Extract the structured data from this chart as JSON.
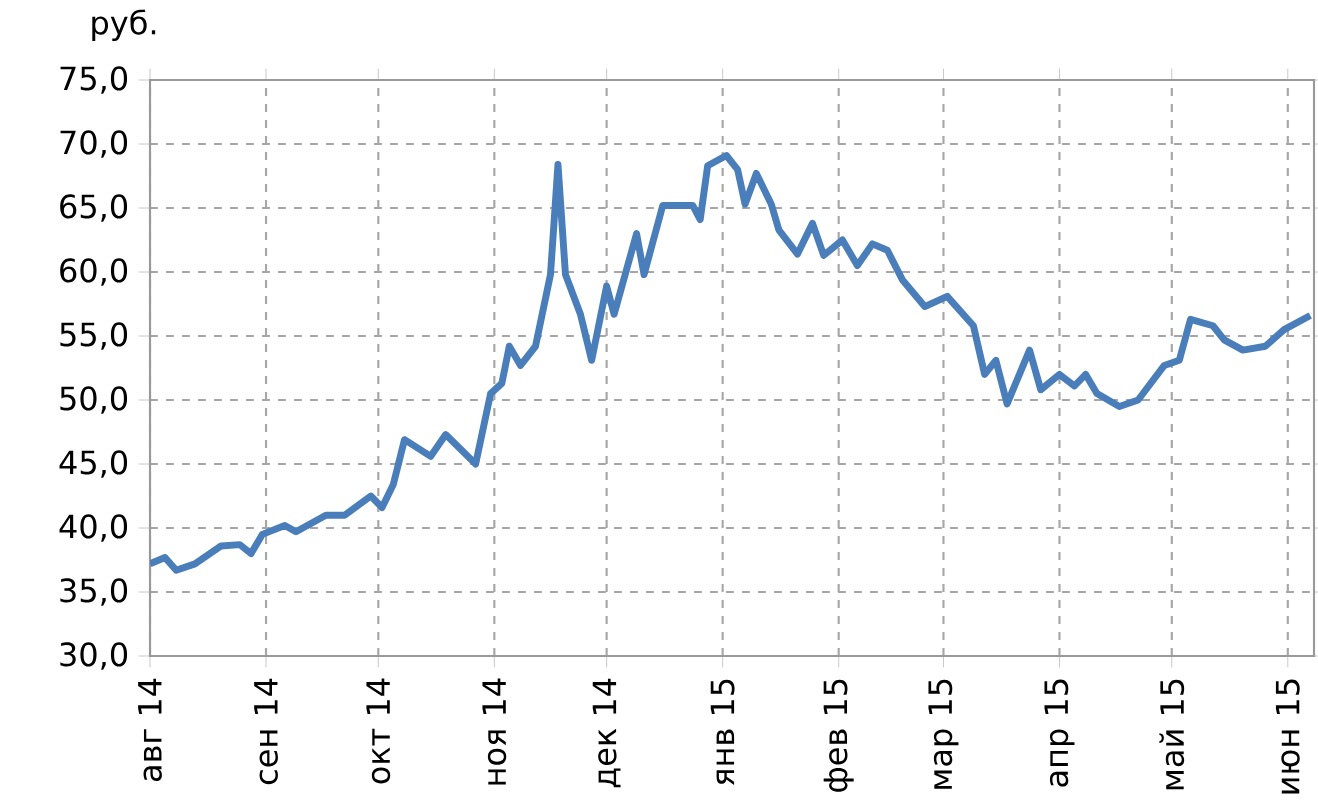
{
  "chart_data": {
    "type": "line",
    "ylabel": "руб.",
    "x": [
      "2014-08-01",
      "2014-08-05",
      "2014-08-08",
      "2014-08-13",
      "2014-08-20",
      "2014-08-25",
      "2014-08-28",
      "2014-08-31",
      "2014-09-06",
      "2014-09-09",
      "2014-09-17",
      "2014-09-22",
      "2014-09-29",
      "2014-10-02",
      "2014-10-05",
      "2014-10-08",
      "2014-10-15",
      "2014-10-19",
      "2014-10-27",
      "2014-10-31",
      "2014-11-03",
      "2014-11-05",
      "2014-11-08",
      "2014-11-12",
      "2014-11-16",
      "2014-11-18",
      "2014-11-20",
      "2014-11-24",
      "2014-11-27",
      "2014-12-01",
      "2014-12-03",
      "2014-12-09",
      "2014-12-11",
      "2014-12-16",
      "2014-12-24",
      "2014-12-26",
      "2014-12-28",
      "2015-01-02",
      "2015-01-05",
      "2015-01-07",
      "2015-01-10",
      "2015-01-14",
      "2015-01-16",
      "2015-01-21",
      "2015-01-25",
      "2015-01-28",
      "2015-02-02",
      "2015-02-06",
      "2015-02-10",
      "2015-02-14",
      "2015-02-18",
      "2015-02-24",
      "2015-03-02",
      "2015-03-09",
      "2015-03-12",
      "2015-03-15",
      "2015-03-18",
      "2015-03-24",
      "2015-03-27",
      "2015-04-01",
      "2015-04-05",
      "2015-04-08",
      "2015-04-11",
      "2015-04-17",
      "2015-04-22",
      "2015-04-29",
      "2015-05-03",
      "2015-05-06",
      "2015-05-12",
      "2015-05-15",
      "2015-05-20",
      "2015-05-26",
      "2015-05-31",
      "2015-06-07"
    ],
    "series": [
      {
        "color": "#4a7ebb",
        "values": [
          37.2,
          37.7,
          36.7,
          37.2,
          38.6,
          38.7,
          38.0,
          39.5,
          40.2,
          39.7,
          41.0,
          41.0,
          42.5,
          41.6,
          43.4,
          46.9,
          45.6,
          47.3,
          45.0,
          50.5,
          51.3,
          54.2,
          52.7,
          54.2,
          59.8,
          68.4,
          59.8,
          56.7,
          53.1,
          58.9,
          56.7,
          63.0,
          59.8,
          65.2,
          65.2,
          64.1,
          68.3,
          69.1,
          68.0,
          65.3,
          67.7,
          65.3,
          63.3,
          61.4,
          63.8,
          61.3,
          62.5,
          60.5,
          62.2,
          61.7,
          59.4,
          57.3,
          58.1,
          55.8,
          52.0,
          53.1,
          49.7,
          53.9,
          50.8,
          52.0,
          51.1,
          52.0,
          50.5,
          49.5,
          50.0,
          52.7,
          53.1,
          56.3,
          55.8,
          54.7,
          53.9,
          54.2,
          55.5,
          56.6
        ]
      }
    ],
    "xlim": [
      "2014-08-01",
      "2015-06-08"
    ],
    "xticks": [
      {
        "value": "2014-08-01",
        "label": "авг 14"
      },
      {
        "value": "2014-09-01",
        "label": "сен 14"
      },
      {
        "value": "2014-10-01",
        "label": "окт 14"
      },
      {
        "value": "2014-11-01",
        "label": "ноя 14"
      },
      {
        "value": "2014-12-01",
        "label": "дек 14"
      },
      {
        "value": "2015-01-01",
        "label": "янв 15"
      },
      {
        "value": "2015-02-01",
        "label": "фев 15"
      },
      {
        "value": "2015-03-01",
        "label": "мар 15"
      },
      {
        "value": "2015-04-01",
        "label": "апр 15"
      },
      {
        "value": "2015-05-01",
        "label": "май 15"
      },
      {
        "value": "2015-06-01",
        "label": "июн 15"
      }
    ],
    "ylim": [
      30,
      75
    ],
    "yticks": [
      {
        "value": 30,
        "label": "30,0"
      },
      {
        "value": 35,
        "label": "35,0"
      },
      {
        "value": 40,
        "label": "40,0"
      },
      {
        "value": 45,
        "label": "45,0"
      },
      {
        "value": 50,
        "label": "50,0"
      },
      {
        "value": 55,
        "label": "55,0"
      },
      {
        "value": 60,
        "label": "60,0"
      },
      {
        "value": 65,
        "label": "65,0"
      },
      {
        "value": 70,
        "label": "70,0"
      },
      {
        "value": 75,
        "label": "75,0"
      }
    ],
    "grid": true,
    "marker": "none",
    "line_style": "solid"
  }
}
